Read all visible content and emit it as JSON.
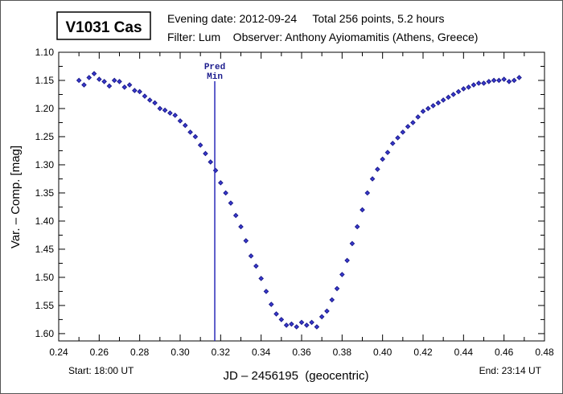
{
  "chart_data": {
    "type": "scatter",
    "title": "V1031 Cas",
    "info_line1": "Evening date: 2012-09-24     Total 256 points, 5.2 hours",
    "info_line2": "Filter: Lum    Observer: Anthony Ayiomamitis (Athens, Greece)",
    "xlabel": "JD – 2456195  (geocentric)",
    "ylabel": "Var. – Comp. [mag]",
    "start_label": "Start: 18:00 UT",
    "end_label": "End: 23:14 UT",
    "xlim": [
      0.24,
      0.48
    ],
    "ylim": [
      1.1,
      1.613
    ],
    "y_inverted": true,
    "grid": false,
    "xticks": [
      "0.24",
      "0.26",
      "0.28",
      "0.30",
      "0.32",
      "0.34",
      "0.36",
      "0.38",
      "0.40",
      "0.42",
      "0.44",
      "0.46",
      "0.48"
    ],
    "yticks": [
      "1.10",
      "1.15",
      "1.20",
      "1.25",
      "1.30",
      "1.35",
      "1.40",
      "1.45",
      "1.50",
      "1.55",
      "1.60"
    ],
    "pred_min": {
      "x": 0.3171,
      "label_line1": "Pred",
      "label_line2": "Min"
    },
    "marker_color": "#1a1a8c",
    "line_color": "#2a2ab8",
    "series": [
      {
        "name": "V1031 Cas",
        "x": [
          0.25,
          0.2525,
          0.255,
          0.2575,
          0.26,
          0.2625,
          0.265,
          0.2675,
          0.27,
          0.2725,
          0.275,
          0.2775,
          0.28,
          0.2825,
          0.285,
          0.2875,
          0.29,
          0.2925,
          0.295,
          0.2975,
          0.3,
          0.3025,
          0.305,
          0.3075,
          0.31,
          0.3125,
          0.315,
          0.3175,
          0.32,
          0.3225,
          0.325,
          0.3275,
          0.33,
          0.3325,
          0.335,
          0.3375,
          0.34,
          0.3425,
          0.345,
          0.3475,
          0.35,
          0.3525,
          0.355,
          0.3575,
          0.36,
          0.3625,
          0.365,
          0.3675,
          0.37,
          0.3725,
          0.375,
          0.3775,
          0.38,
          0.3825,
          0.385,
          0.3875,
          0.39,
          0.3925,
          0.395,
          0.3975,
          0.4,
          0.4025,
          0.405,
          0.4075,
          0.41,
          0.4125,
          0.415,
          0.4175,
          0.42,
          0.4225,
          0.425,
          0.4275,
          0.43,
          0.4325,
          0.435,
          0.4375,
          0.44,
          0.4425,
          0.445,
          0.4475,
          0.45,
          0.4525,
          0.455,
          0.4575,
          0.46,
          0.4625,
          0.465,
          0.4675
        ],
        "y": [
          1.15,
          1.158,
          1.145,
          1.138,
          1.148,
          1.152,
          1.16,
          1.15,
          1.152,
          1.162,
          1.158,
          1.168,
          1.17,
          1.178,
          1.185,
          1.19,
          1.2,
          1.203,
          1.208,
          1.212,
          1.222,
          1.23,
          1.242,
          1.25,
          1.265,
          1.28,
          1.295,
          1.31,
          1.332,
          1.35,
          1.368,
          1.39,
          1.41,
          1.435,
          1.462,
          1.48,
          1.502,
          1.525,
          1.548,
          1.565,
          1.575,
          1.585,
          1.583,
          1.588,
          1.58,
          1.585,
          1.58,
          1.588,
          1.57,
          1.56,
          1.54,
          1.52,
          1.495,
          1.47,
          1.44,
          1.41,
          1.38,
          1.35,
          1.325,
          1.308,
          1.29,
          1.278,
          1.262,
          1.252,
          1.242,
          1.232,
          1.225,
          1.215,
          1.205,
          1.2,
          1.195,
          1.19,
          1.185,
          1.18,
          1.175,
          1.17,
          1.165,
          1.162,
          1.158,
          1.155,
          1.155,
          1.152,
          1.15,
          1.15,
          1.148,
          1.152,
          1.15,
          1.145
        ]
      }
    ]
  }
}
